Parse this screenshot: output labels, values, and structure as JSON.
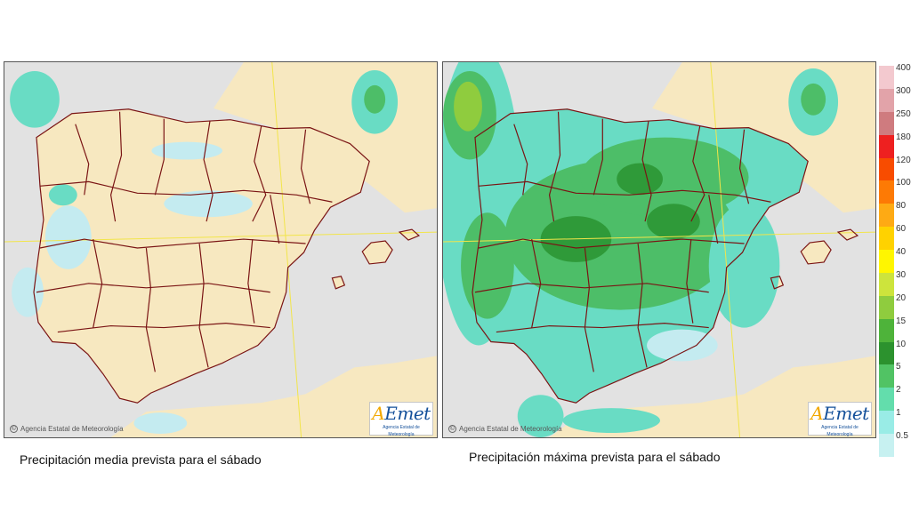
{
  "maps": [
    {
      "id": "left",
      "credit": "Agencia Estatal de Meteorología",
      "logo": {
        "brand_a": "A",
        "brand_rest": "Emet",
        "sub": "Agencia Estatal de Meteorología"
      },
      "caption": "Precipitación media prevista para el sábado"
    },
    {
      "id": "right",
      "credit": "Agencia Estatal de Meteorología",
      "logo": {
        "brand_a": "A",
        "brand_rest": "Emet",
        "sub": "Agencia Estatal de Meteorología"
      },
      "caption": "Precipitación máxima prevista para el sábado"
    }
  ],
  "legend": {
    "levels": [
      "400",
      "300",
      "250",
      "180",
      "120",
      "100",
      "80",
      "60",
      "40",
      "30",
      "20",
      "15",
      "10",
      "5",
      "2",
      "1",
      "0.5"
    ],
    "colors": [
      "#f3c9cf",
      "#e2a3a9",
      "#cf7b7f",
      "#ee2020",
      "#f84c00",
      "#fd7a05",
      "#feaa14",
      "#ffd200",
      "#fff600",
      "#cde43c",
      "#8fcc3e",
      "#4eb33a",
      "#2c922e",
      "#51c364",
      "#63ddac",
      "#99ece6",
      "#c7f1f1"
    ]
  },
  "colors": {
    "land": "#f7e8c0",
    "sea": "#e2e2e2",
    "rain_light": "#c4ebf0",
    "rain_medium": "#69dcc4",
    "rain_heavy": "#4dbe68",
    "rain_strong": "#2f9a39",
    "borders": "#7a1414",
    "graticule": "#f2e54a"
  }
}
